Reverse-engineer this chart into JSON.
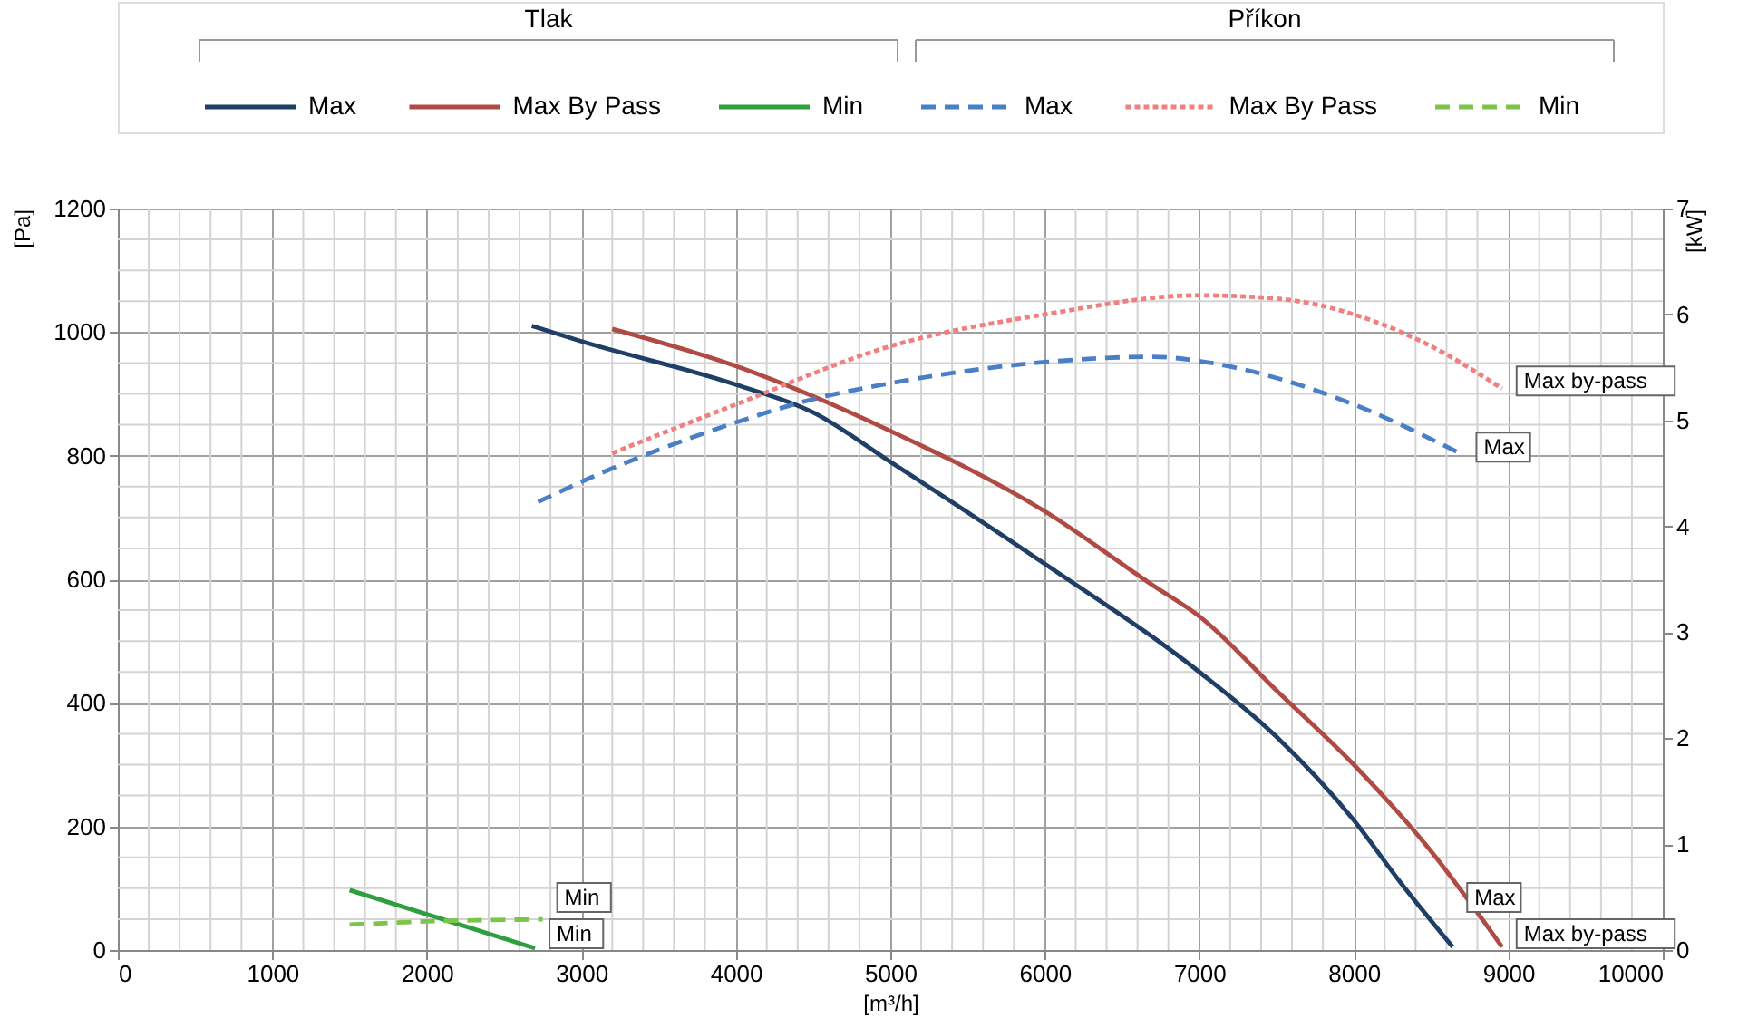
{
  "chart_data": {
    "type": "line",
    "xlabel": "[m³/h]",
    "ylabel": "[Pa]",
    "y2label": "[kW]",
    "xlim": [
      0,
      10000
    ],
    "xticks": [
      0,
      1000,
      2000,
      3000,
      4000,
      5000,
      6000,
      7000,
      8000,
      9000,
      10000
    ],
    "ylim": [
      0,
      1200
    ],
    "yticks": [
      0,
      200,
      400,
      600,
      800,
      1000,
      1200
    ],
    "y2lim": [
      0,
      7
    ],
    "y2ticks": [
      0,
      1,
      2,
      3,
      4,
      5,
      6,
      7
    ],
    "grid": true,
    "legend": "top",
    "series": [
      {
        "name": "Max",
        "color": "#1f3f66",
        "line_style": "solid",
        "x": [
          2680,
          3000,
          4000,
          4500,
          5000,
          6000,
          7000,
          7500,
          8000,
          8300,
          8640
        ],
        "values": [
          1010,
          985,
          915,
          870,
          790,
          625,
          450,
          345,
          210,
          110,
          5
        ]
      },
      {
        "name": "Max By Pass",
        "color": "#b04a45",
        "line_style": "solid",
        "x": [
          3200,
          4000,
          5000,
          6000,
          6700,
          7000,
          7500,
          8000,
          8500,
          8960
        ],
        "values": [
          1005,
          945,
          840,
          710,
          590,
          540,
          420,
          300,
          160,
          5
        ]
      },
      {
        "name": "Min",
        "color": "#2e9e3e",
        "line_style": "solid",
        "x": [
          1500,
          2700
        ],
        "values": [
          97,
          3
        ]
      },
      {
        "name": "Max",
        "color": "#4a7fc8",
        "line_style": "dashed",
        "axis": "y2",
        "x": [
          2720,
          3000,
          4000,
          4500,
          5000,
          6000,
          6700,
          7000,
          7500,
          8000,
          8700
        ],
        "values": [
          4.23,
          4.42,
          4.98,
          5.2,
          5.35,
          5.55,
          5.6,
          5.56,
          5.4,
          5.15,
          4.68
        ]
      },
      {
        "name": "Max By Pass",
        "color": "#f08080",
        "line_style": "dotted",
        "axis": "y2",
        "x": [
          3200,
          4000,
          5000,
          6000,
          7000,
          7500,
          8000,
          8500,
          8960
        ],
        "values": [
          4.69,
          5.15,
          5.7,
          6.0,
          6.18,
          6.15,
          6.0,
          5.7,
          5.3
        ]
      },
      {
        "name": "Min",
        "color": "#7cc44a",
        "line_style": "dashed",
        "axis": "y2",
        "x": [
          1500,
          2000,
          2750
        ],
        "values": [
          0.24,
          0.27,
          0.29
        ]
      }
    ],
    "annotations": [
      "Tlak",
      "Příkon",
      {
        "text": "Max by-pass",
        "x": 8960,
        "y": 909
      },
      {
        "text": "Max",
        "x": 8700,
        "y": 802
      },
      {
        "text": "Min",
        "x": 2750,
        "y": 50
      },
      {
        "text": "Min",
        "x": 2700,
        "y": 3
      },
      {
        "text": "Max",
        "x": 8640,
        "y": 5
      },
      {
        "text": "Max by-pass",
        "x": 8960,
        "y": 5
      }
    ]
  }
}
